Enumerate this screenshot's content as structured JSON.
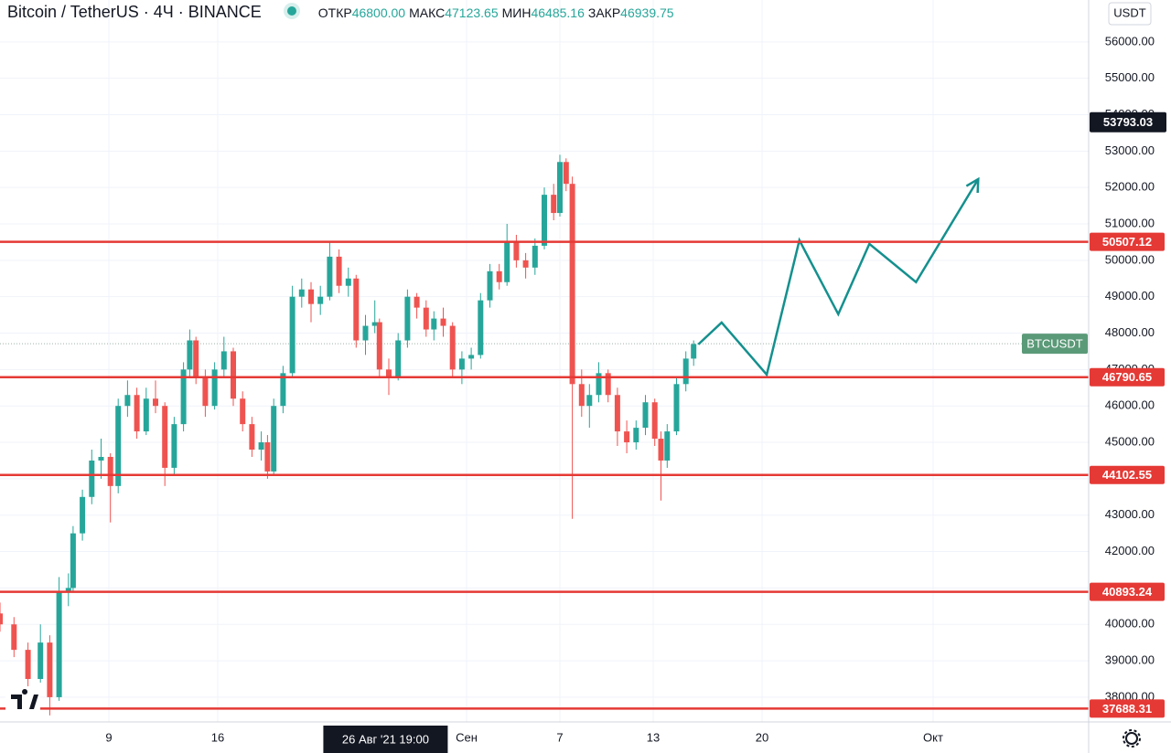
{
  "chart_data": {
    "type": "candlestick",
    "title": "Bitcoin / TetherUS · 4Ч · BINANCE",
    "ohlc_legend": [
      {
        "label": "ОТКР",
        "value": "46800.00"
      },
      {
        "label": "МАКС",
        "value": "47123.65"
      },
      {
        "label": "МИН",
        "value": "46485.16"
      },
      {
        "label": "ЗАКР",
        "value": "46939.75"
      }
    ],
    "currency": "USDT",
    "x": [
      2.0,
      2.9,
      3.8,
      4.6,
      5.2,
      5.8,
      6.4,
      6.7,
      7.3,
      7.9,
      8.5,
      9.1,
      9.6,
      10.2,
      10.8,
      11.4,
      12.0,
      12.6,
      13.2,
      13.8,
      14.2,
      14.6,
      15.2,
      15.8,
      16.4,
      17.0,
      17.6,
      18.2,
      18.8,
      19.2,
      19.6,
      20.2,
      20.8,
      21.4,
      22.0,
      22.6,
      23.2,
      23.8,
      24.4,
      24.9,
      25.5,
      26.1,
      26.4,
      27.0,
      27.6,
      28.2,
      28.8,
      29.4,
      29.9,
      30.5,
      31.1,
      31.7,
      32.3,
      32.9,
      33.5,
      34.1,
      34.6,
      35.2,
      35.8,
      36.4,
      37.0,
      37.6,
      38.0,
      38.4,
      38.8,
      39.4,
      39.9,
      40.5,
      41.1,
      41.7,
      42.3,
      42.9,
      43.5,
      44.1,
      44.5,
      44.9,
      45.5,
      46.1,
      46.6
    ],
    "open": [
      40300,
      40000,
      39300,
      38500,
      39500,
      38000,
      40900,
      41000,
      42500,
      43500,
      44500,
      44600,
      43800,
      46000,
      46300,
      45300,
      46200,
      46000,
      44300,
      45500,
      47000,
      47800,
      46800,
      46000,
      47000,
      47500,
      46200,
      45500,
      44800,
      45000,
      44200,
      46000,
      46900,
      49000,
      49200,
      48800,
      49000,
      50100,
      49300,
      49500,
      47800,
      48200,
      48300,
      47000,
      46800,
      47800,
      49000,
      48700,
      48100,
      48400,
      48200,
      47000,
      47300,
      47400,
      48900,
      49700,
      49400,
      50500,
      50000,
      49800,
      50400,
      51800,
      51300,
      52700,
      52100,
      46600,
      46000,
      46300,
      46900,
      46300,
      45300,
      45000,
      45400,
      46100,
      45100,
      44500,
      45300,
      46600,
      47300
    ],
    "high": [
      40600,
      40200,
      39500,
      40000,
      39700,
      41300,
      41400,
      42700,
      43700,
      44800,
      45100,
      44700,
      46200,
      46700,
      46500,
      46500,
      46700,
      46100,
      45700,
      47200,
      48100,
      47900,
      47000,
      47200,
      47900,
      47600,
      46400,
      45700,
      45300,
      45200,
      46200,
      47100,
      49300,
      49500,
      49400,
      49300,
      50500,
      50300,
      49800,
      49600,
      48500,
      48900,
      48400,
      47300,
      48000,
      49200,
      49100,
      48900,
      48600,
      48700,
      48300,
      47500,
      47600,
      49100,
      49900,
      49900,
      51000,
      50700,
      50200,
      50600,
      52000,
      52100,
      52900,
      52800,
      52300,
      47000,
      46600,
      47200,
      47000,
      46500,
      45600,
      45600,
      46300,
      46200,
      45300,
      45500,
      46800,
      47500,
      47800
    ],
    "low": [
      39800,
      39100,
      38300,
      38400,
      37500,
      37900,
      40500,
      40900,
      42300,
      43300,
      44000,
      42800,
      43600,
      45700,
      45100,
      45200,
      45800,
      43800,
      44100,
      45300,
      46800,
      46600,
      45700,
      45900,
      46800,
      46000,
      45300,
      44600,
      44500,
      44000,
      44100,
      45800,
      46800,
      48700,
      48300,
      48500,
      48900,
      49100,
      49000,
      47600,
      47400,
      48000,
      46800,
      46300,
      46700,
      47600,
      48400,
      47900,
      47800,
      47900,
      46800,
      46600,
      47000,
      47300,
      48700,
      49200,
      49300,
      49800,
      49500,
      49600,
      50300,
      51100,
      51200,
      51900,
      42900,
      45700,
      45400,
      46100,
      46100,
      44900,
      44700,
      44800,
      45200,
      44900,
      43400,
      44300,
      45200,
      46400,
      47100
    ],
    "close": [
      40000,
      39300,
      38500,
      39500,
      38000,
      40900,
      41000,
      42500,
      43500,
      44500,
      44600,
      43800,
      46000,
      46300,
      45300,
      46200,
      46000,
      44300,
      45500,
      47000,
      47800,
      46800,
      46000,
      47000,
      47500,
      46200,
      45500,
      44800,
      45000,
      44200,
      46000,
      46900,
      49000,
      49200,
      48800,
      49000,
      50100,
      49300,
      49500,
      47800,
      48200,
      48300,
      47000,
      46800,
      47800,
      49000,
      48700,
      48100,
      48400,
      48200,
      47000,
      47300,
      47400,
      48900,
      49700,
      49400,
      50500,
      50000,
      49800,
      50400,
      51800,
      51300,
      52700,
      52100,
      46600,
      46000,
      46300,
      46900,
      46300,
      45300,
      45000,
      45400,
      46100,
      45100,
      44500,
      45300,
      46600,
      47300,
      47700
    ],
    "up_color": "#26a69a",
    "down_color": "#ef5350",
    "xlim": [
      2,
      72
    ],
    "ylim": [
      37320,
      57150
    ],
    "xticks": [
      9,
      16,
      {
        "value": 32,
        "label": "Сен"
      },
      {
        "value": 38,
        "label": "7"
      },
      {
        "value": 44,
        "label": "13"
      },
      {
        "value": 51,
        "label": "20"
      },
      {
        "value": 62,
        "label": "Окт"
      }
    ],
    "yticks": [
      {
        "value": 38000,
        "label": "38000.00"
      },
      {
        "value": 39000,
        "label": "39000.00"
      },
      {
        "value": 40000,
        "label": "40000.00"
      },
      {
        "value": 41000,
        "label": "41000.00"
      },
      {
        "value": 42000,
        "label": "42000.00"
      },
      {
        "value": 43000,
        "label": "43000.00"
      },
      {
        "value": 44000,
        "label": "44000.00"
      },
      {
        "value": 45000,
        "label": "45000.00"
      },
      {
        "value": 46000,
        "label": "46000.00"
      },
      {
        "value": 47000,
        "label": "47000.00"
      },
      {
        "value": 48000,
        "label": "48000.00"
      },
      {
        "value": 49000,
        "label": "49000.00"
      },
      {
        "value": 50000,
        "label": "50000.00"
      },
      {
        "value": 51000,
        "label": "51000.00"
      },
      {
        "value": 52000,
        "label": "52000.00"
      },
      {
        "value": 53000,
        "label": "53000.00"
      },
      {
        "value": 54000,
        "label": "54000.00"
      },
      {
        "value": 55000,
        "label": "55000.00"
      },
      {
        "value": 56000,
        "label": "56000.00"
      }
    ],
    "grid": true,
    "levels": [
      50507.12,
      46790.65,
      44102.55,
      40893.24,
      37688.31
    ],
    "level_color": "#e53935",
    "price_marker": 53793.03,
    "last_price": 47710,
    "last_price_label": "BTCUSDT",
    "last_price_color": "#5b9a78",
    "crosshair": {
      "x": 26.79,
      "label": "26 Авг '21 19:00"
    },
    "forecast": {
      "color": "#14908e",
      "x": [
        46.9,
        48.4,
        51.3,
        53.4,
        55.9,
        57.9,
        60.9,
        64.9
      ],
      "values": [
        47690,
        48290,
        46860,
        50550,
        48520,
        50450,
        49400,
        52230
      ]
    }
  }
}
